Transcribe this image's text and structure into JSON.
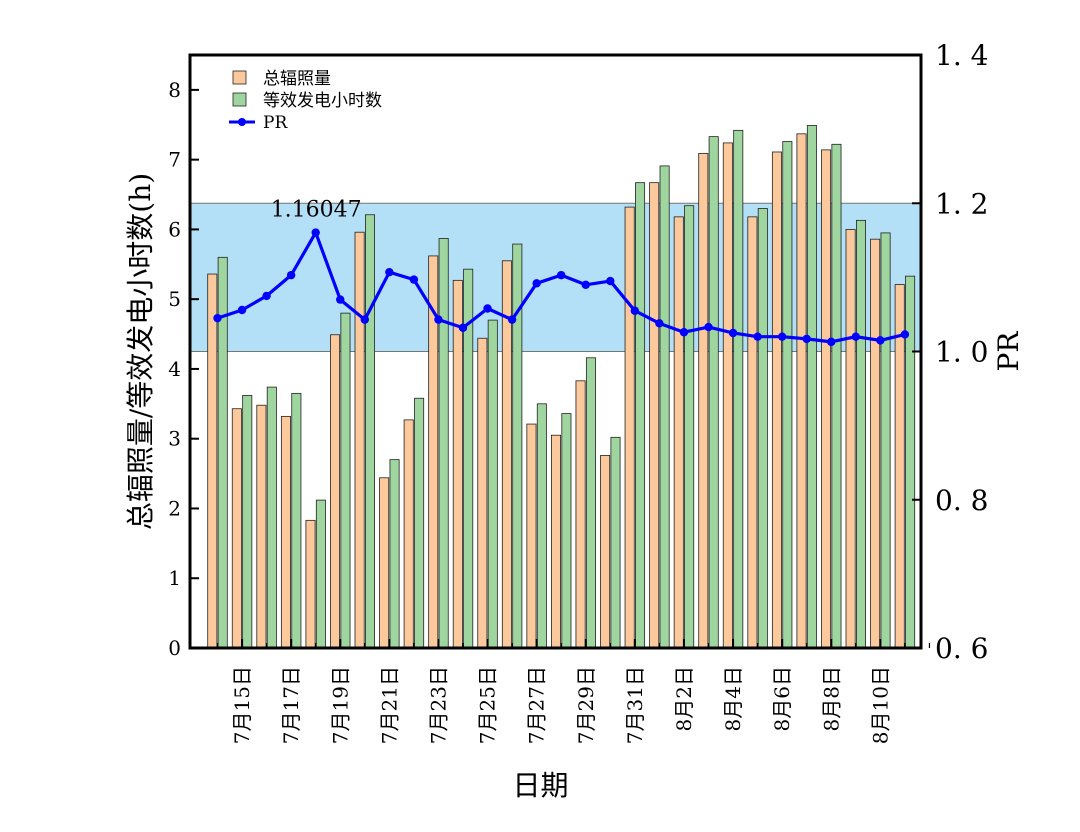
{
  "chart_data": {
    "type": "bar",
    "xlabel": "日期",
    "ylabel": "总辐照量/等效发电小时数(h)",
    "y2label": "PR",
    "ylim": [
      0,
      8.5
    ],
    "y2lim": [
      0.6,
      1.4
    ],
    "yticks": [
      "0",
      "1",
      "2",
      "3",
      "4",
      "5",
      "6",
      "7",
      "8"
    ],
    "y2ticks": [
      "0.6",
      "0.8",
      "1.0",
      "1.2",
      "1.4"
    ],
    "band": {
      "from": 1.0,
      "to": 1.2,
      "color": "#b3e0f7"
    },
    "categories": [
      "7月14日",
      "7月15日",
      "7月16日",
      "7月17日",
      "7月18日",
      "7月19日",
      "7月20日",
      "7月21日",
      "7月22日",
      "7月23日",
      "7月24日",
      "7月25日",
      "7月26日",
      "7月27日",
      "7月28日",
      "7月29日",
      "7月30日",
      "7月31日",
      "8月1日",
      "8月2日",
      "8月3日",
      "8月4日",
      "8月5日",
      "8月6日",
      "8月7日",
      "8月8日",
      "8月9日",
      "8月10日",
      "8月11日"
    ],
    "tick_labels": [
      "7月15日",
      "7月17日",
      "7月19日",
      "7月21日",
      "7月23日",
      "7月25日",
      "7月27日",
      "7月29日",
      "7月31日",
      "8月2日",
      "8月4日",
      "8月6日",
      "8月8日",
      "8月10日"
    ],
    "series": [
      {
        "name": "总辐照量",
        "axis": "left",
        "kind": "bar",
        "color": "#fcc99c",
        "values": [
          5.36,
          3.43,
          3.48,
          3.32,
          1.83,
          4.49,
          5.96,
          2.44,
          3.27,
          5.62,
          5.27,
          4.44,
          5.55,
          3.21,
          3.05,
          3.83,
          2.76,
          6.32,
          6.67,
          6.18,
          7.09,
          7.24,
          6.18,
          7.11,
          7.37,
          7.14,
          6.0,
          5.86,
          5.21
        ]
      },
      {
        "name": "等效发电小时数",
        "axis": "left",
        "kind": "bar",
        "color": "#9fd69f",
        "values": [
          5.6,
          3.62,
          3.74,
          3.65,
          2.12,
          4.8,
          6.21,
          2.7,
          3.58,
          5.87,
          5.43,
          4.7,
          5.79,
          3.5,
          3.36,
          4.16,
          3.02,
          6.67,
          6.91,
          6.34,
          7.33,
          7.42,
          6.3,
          7.26,
          7.49,
          7.22,
          6.13,
          5.95,
          5.33
        ]
      },
      {
        "name": "PR",
        "axis": "right",
        "kind": "line",
        "color": "#0000ff",
        "values": [
          1.045,
          1.056,
          1.075,
          1.103,
          1.16047,
          1.07,
          1.043,
          1.107,
          1.097,
          1.043,
          1.032,
          1.058,
          1.043,
          1.092,
          1.103,
          1.09,
          1.095,
          1.055,
          1.038,
          1.026,
          1.033,
          1.025,
          1.02,
          1.02,
          1.017,
          1.013,
          1.02,
          1.015,
          1.023
        ]
      }
    ],
    "annotations": [
      {
        "text": "1.16047",
        "series": "PR",
        "index": 4
      }
    ],
    "legend": {
      "position": "top-left",
      "entries": [
        "总辐照量",
        "等效发电小时数",
        "PR"
      ]
    }
  }
}
